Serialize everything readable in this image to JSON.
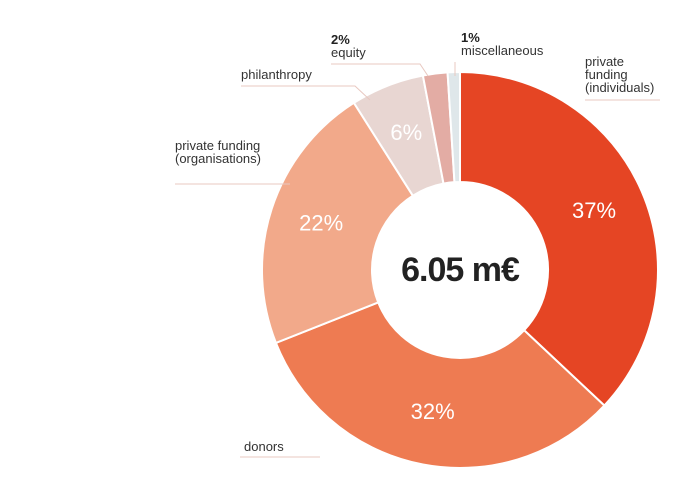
{
  "chart_data": {
    "type": "donut",
    "center_label": "6.05 m€",
    "categories": [
      "private funding (individuals)",
      "donors",
      "private funding (organisations)",
      "philanthropy",
      "equity",
      "miscellaneous"
    ],
    "values": [
      37,
      32,
      22,
      6,
      2,
      1
    ],
    "value_labels": [
      "37%",
      "32%",
      "22%",
      "6%",
      "2%",
      "1%"
    ],
    "colors": [
      "#e54524",
      "#ee7b52",
      "#f2a98a",
      "#e8d6d2",
      "#e3aca4",
      "#dfe7ea"
    ]
  }
}
